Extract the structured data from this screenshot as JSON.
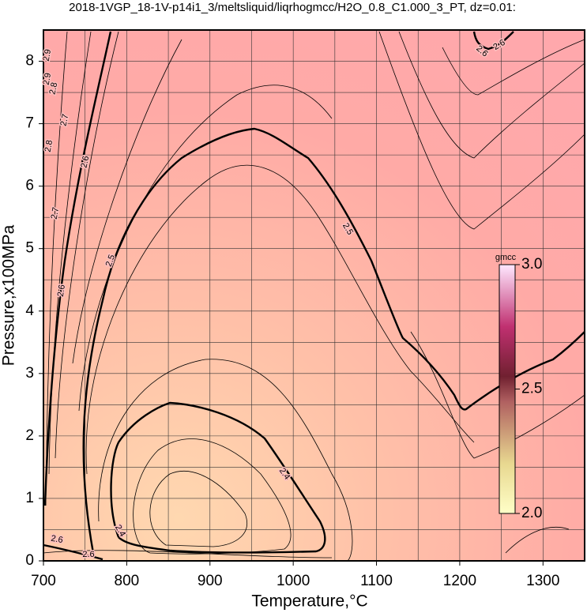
{
  "title": "2018-1VGP_18-1V-p14i1_3/meltsliquid/liqrhogmcc/H2O_0.8_C1.000_3_PT, dz=0.01:",
  "chart_data": {
    "type": "contour",
    "x_label": "Temperature,°C",
    "y_label": "Pressure,x100MPa",
    "xlim": [
      700,
      1350
    ],
    "ylim": [
      0,
      8.5
    ],
    "xticks": [
      700,
      800,
      900,
      1000,
      1100,
      1200,
      1300
    ],
    "yticks": [
      0,
      1,
      2,
      3,
      4,
      5,
      6,
      7,
      8
    ],
    "grid": true,
    "contour_labels": [
      2.9,
      2.9,
      2.8,
      2.7,
      2.8,
      2.6,
      2.7,
      2.5,
      2.6,
      2.5,
      2.4,
      2.4,
      2.6,
      2.6,
      2.6,
      2.6
    ]
  },
  "colorbar": {
    "label": "gmcc",
    "lim": [
      2.0,
      3.0
    ],
    "ticks": [
      {
        "value": 2.0,
        "label": "2.0"
      },
      {
        "value": 2.5,
        "label": "2.5"
      },
      {
        "value": 3.0,
        "label": "3.0"
      }
    ]
  }
}
